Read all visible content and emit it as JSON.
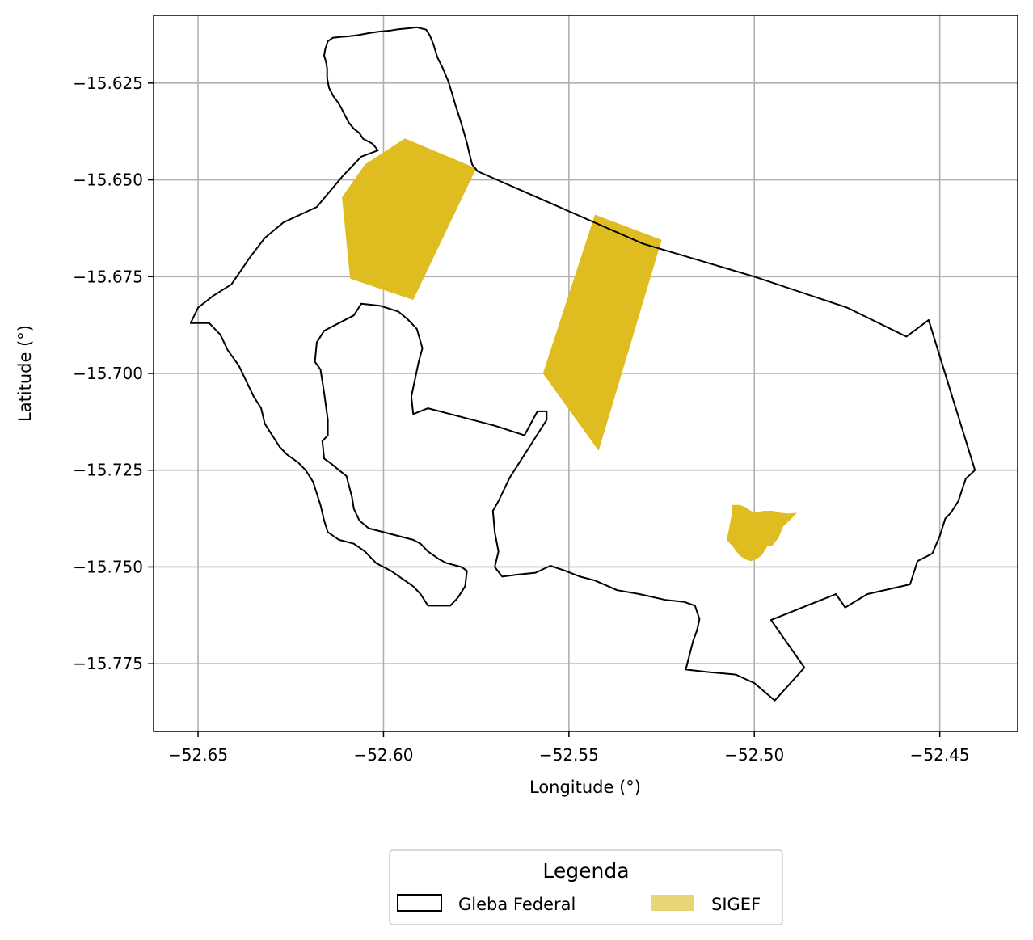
{
  "chart_data": {
    "type": "map",
    "xlabel": "Longitude (°)",
    "ylabel": "Latitude (°)",
    "xlim": [
      -52.662,
      -52.429
    ],
    "ylim": [
      -15.7925,
      -15.6075
    ],
    "xticks": [
      -52.65,
      -52.6,
      -52.55,
      -52.5,
      -52.45
    ],
    "xtick_labels": [
      "−52.65",
      "−52.60",
      "−52.55",
      "−52.50",
      "−52.45"
    ],
    "yticks": [
      -15.625,
      -15.65,
      -15.675,
      -15.7,
      -15.725,
      -15.75,
      -15.775
    ],
    "ytick_labels": [
      "−15.625",
      "−15.650",
      "−15.675",
      "−15.700",
      "−15.725",
      "−15.750",
      "−15.775"
    ],
    "grid": true,
    "legend": {
      "title": "Legenda",
      "placement": "bottom-center",
      "entries": [
        {
          "label": "Gleba Federal",
          "style": "outline",
          "color": "#000000"
        },
        {
          "label": "SIGEF",
          "style": "fill",
          "color": "#e8d577"
        }
      ]
    },
    "layers": [
      {
        "name": "Gleba Federal",
        "style": "outline",
        "stroke": "#000000",
        "coordinates": [
          [
            -52.6015,
            -15.6424
          ],
          [
            -52.6029,
            -15.6407
          ],
          [
            -52.6055,
            -15.6394
          ],
          [
            -52.6065,
            -15.6379
          ],
          [
            -52.608,
            -15.6368
          ],
          [
            -52.6093,
            -15.6353
          ],
          [
            -52.6103,
            -15.6335
          ],
          [
            -52.6112,
            -15.6318
          ],
          [
            -52.6122,
            -15.6301
          ],
          [
            -52.6135,
            -15.6284
          ],
          [
            -52.6147,
            -15.6262
          ],
          [
            -52.6152,
            -15.6237
          ],
          [
            -52.6152,
            -15.6212
          ],
          [
            -52.6155,
            -15.6195
          ],
          [
            -52.616,
            -15.6179
          ],
          [
            -52.6157,
            -15.6162
          ],
          [
            -52.615,
            -15.6142
          ],
          [
            -52.6137,
            -15.6133
          ],
          [
            -52.6117,
            -15.6131
          ],
          [
            -52.6093,
            -15.6129
          ],
          [
            -52.6068,
            -15.6126
          ],
          [
            -52.604,
            -15.6121
          ],
          [
            -52.6012,
            -15.6117
          ],
          [
            -52.598,
            -15.6114
          ],
          [
            -52.596,
            -15.6111
          ],
          [
            -52.5938,
            -15.6109
          ],
          [
            -52.591,
            -15.6106
          ],
          [
            -52.5885,
            -15.6112
          ],
          [
            -52.5875,
            -15.6127
          ],
          [
            -52.5865,
            -15.6151
          ],
          [
            -52.5855,
            -15.6183
          ],
          [
            -52.584,
            -15.6212
          ],
          [
            -52.5825,
            -15.6246
          ],
          [
            -52.5815,
            -15.6277
          ],
          [
            -52.5805,
            -15.631
          ],
          [
            -52.5795,
            -15.6339
          ],
          [
            -52.5785,
            -15.6371
          ],
          [
            -52.5775,
            -15.6405
          ],
          [
            -52.5767,
            -15.6438
          ],
          [
            -52.5761,
            -15.646
          ],
          [
            -52.5746,
            -15.6478
          ],
          [
            -52.555,
            -15.656
          ],
          [
            -52.53,
            -15.6665
          ],
          [
            -52.5,
            -15.675
          ],
          [
            -52.475,
            -15.683
          ],
          [
            -52.459,
            -15.6905
          ],
          [
            -52.453,
            -15.6862
          ],
          [
            -52.446,
            -15.708
          ],
          [
            -52.4405,
            -15.725
          ],
          [
            -52.443,
            -15.7272
          ],
          [
            -52.445,
            -15.733
          ],
          [
            -52.447,
            -15.736
          ],
          [
            -52.4485,
            -15.7375
          ],
          [
            -52.45,
            -15.742
          ],
          [
            -52.452,
            -15.7465
          ],
          [
            -52.454,
            -15.7475
          ],
          [
            -52.456,
            -15.7485
          ],
          [
            -52.458,
            -15.7545
          ],
          [
            -52.4695,
            -15.757
          ],
          [
            -52.473,
            -15.759
          ],
          [
            -52.4755,
            -15.7605
          ],
          [
            -52.478,
            -15.757
          ],
          [
            -52.4955,
            -15.7637
          ],
          [
            -52.4865,
            -15.776
          ],
          [
            -52.4945,
            -15.7845
          ],
          [
            -52.5,
            -15.78
          ],
          [
            -52.505,
            -15.7778
          ],
          [
            -52.512,
            -15.7772
          ],
          [
            -52.5185,
            -15.7765
          ],
          [
            -52.5165,
            -15.769
          ],
          [
            -52.5155,
            -15.7665
          ],
          [
            -52.5148,
            -15.7635
          ],
          [
            -52.516,
            -15.76
          ],
          [
            -52.519,
            -15.759
          ],
          [
            -52.524,
            -15.7585
          ],
          [
            -52.531,
            -15.757
          ],
          [
            -52.537,
            -15.756
          ],
          [
            -52.543,
            -15.7535
          ],
          [
            -52.547,
            -15.7525
          ],
          [
            -52.551,
            -15.751
          ],
          [
            -52.555,
            -15.7497
          ],
          [
            -52.559,
            -15.7515
          ],
          [
            -52.564,
            -15.752
          ],
          [
            -52.568,
            -15.7525
          ],
          [
            -52.57,
            -15.75
          ],
          [
            -52.569,
            -15.746
          ],
          [
            -52.57,
            -15.741
          ],
          [
            -52.5705,
            -15.7355
          ],
          [
            -52.569,
            -15.733
          ],
          [
            -52.566,
            -15.727
          ],
          [
            -52.562,
            -15.721
          ],
          [
            -52.559,
            -15.7165
          ],
          [
            -52.556,
            -15.712
          ],
          [
            -52.556,
            -15.7098
          ],
          [
            -52.5585,
            -15.7098
          ],
          [
            -52.562,
            -15.716
          ],
          [
            -52.57,
            -15.7135
          ],
          [
            -52.58,
            -15.711
          ],
          [
            -52.588,
            -15.709
          ],
          [
            -52.592,
            -15.7105
          ],
          [
            -52.5925,
            -15.706
          ],
          [
            -52.5905,
            -15.697
          ],
          [
            -52.5895,
            -15.6935
          ],
          [
            -52.591,
            -15.6885
          ],
          [
            -52.5935,
            -15.686
          ],
          [
            -52.596,
            -15.684
          ],
          [
            -52.601,
            -15.6825
          ],
          [
            -52.606,
            -15.682
          ],
          [
            -52.608,
            -15.685
          ],
          [
            -52.612,
            -15.687
          ],
          [
            -52.616,
            -15.689
          ],
          [
            -52.618,
            -15.692
          ],
          [
            -52.6185,
            -15.697
          ],
          [
            -52.617,
            -15.699
          ],
          [
            -52.616,
            -15.705
          ],
          [
            -52.615,
            -15.712
          ],
          [
            -52.615,
            -15.716
          ],
          [
            -52.6165,
            -15.7175
          ],
          [
            -52.616,
            -15.722
          ],
          [
            -52.6145,
            -15.723
          ],
          [
            -52.612,
            -15.725
          ],
          [
            -52.61,
            -15.7265
          ],
          [
            -52.6085,
            -15.732
          ],
          [
            -52.608,
            -15.735
          ],
          [
            -52.6065,
            -15.738
          ],
          [
            -52.604,
            -15.74
          ],
          [
            -52.6,
            -15.741
          ],
          [
            -52.596,
            -15.742
          ],
          [
            -52.592,
            -15.743
          ],
          [
            -52.59,
            -15.744
          ],
          [
            -52.588,
            -15.746
          ],
          [
            -52.585,
            -15.748
          ],
          [
            -52.583,
            -15.749
          ],
          [
            -52.579,
            -15.75
          ],
          [
            -52.5775,
            -15.751
          ],
          [
            -52.578,
            -15.755
          ],
          [
            -52.58,
            -15.758
          ],
          [
            -52.582,
            -15.76
          ],
          [
            -52.588,
            -15.76
          ],
          [
            -52.59,
            -15.757
          ],
          [
            -52.592,
            -15.755
          ],
          [
            -52.595,
            -15.753
          ],
          [
            -52.598,
            -15.751
          ],
          [
            -52.602,
            -15.749
          ],
          [
            -52.605,
            -15.746
          ],
          [
            -52.608,
            -15.744
          ],
          [
            -52.612,
            -15.743
          ],
          [
            -52.615,
            -15.741
          ],
          [
            -52.616,
            -15.738
          ],
          [
            -52.617,
            -15.734
          ],
          [
            -52.618,
            -15.731
          ],
          [
            -52.619,
            -15.728
          ],
          [
            -52.621,
            -15.725
          ],
          [
            -52.623,
            -15.723
          ],
          [
            -52.626,
            -15.721
          ],
          [
            -52.628,
            -15.719
          ],
          [
            -52.63,
            -15.716
          ],
          [
            -52.632,
            -15.713
          ],
          [
            -52.633,
            -15.709
          ],
          [
            -52.635,
            -15.706
          ],
          [
            -52.637,
            -15.702
          ],
          [
            -52.639,
            -15.698
          ],
          [
            -52.642,
            -15.694
          ],
          [
            -52.644,
            -15.69
          ],
          [
            -52.647,
            -15.687
          ],
          [
            -52.652,
            -15.687
          ],
          [
            -52.65,
            -15.683
          ],
          [
            -52.646,
            -15.68
          ],
          [
            -52.641,
            -15.677
          ],
          [
            -52.636,
            -15.67
          ],
          [
            -52.632,
            -15.665
          ],
          [
            -52.627,
            -15.661
          ],
          [
            -52.618,
            -15.657
          ],
          [
            -52.611,
            -15.649
          ],
          [
            -52.606,
            -15.644
          ],
          [
            -52.6015,
            -15.6424
          ]
        ]
      }
    ],
    "sigef_polygons": [
      {
        "name": "SIGEF",
        "fill": "#dfbc20",
        "coordinates": [
          [
            -52.5942,
            -15.6393
          ],
          [
            -52.605,
            -15.646
          ],
          [
            -52.6112,
            -15.6545
          ],
          [
            -52.609,
            -15.6755
          ],
          [
            -52.592,
            -15.681
          ],
          [
            -52.575,
            -15.647
          ],
          [
            -52.5942,
            -15.6393
          ]
        ]
      },
      {
        "name": "SIGEF",
        "fill": "#dfbc20",
        "coordinates": [
          [
            -52.543,
            -15.659
          ],
          [
            -52.525,
            -15.6655
          ],
          [
            -52.542,
            -15.72
          ],
          [
            -52.557,
            -15.7
          ],
          [
            -52.543,
            -15.659
          ]
        ]
      },
      {
        "name": "SIGEF",
        "fill": "#dfbc20",
        "coordinates": [
          [
            -52.506,
            -15.734
          ],
          [
            -52.504,
            -15.734
          ],
          [
            -52.5025,
            -15.7345
          ],
          [
            -52.501,
            -15.7355
          ],
          [
            -52.4995,
            -15.736
          ],
          [
            -52.4975,
            -15.7355
          ],
          [
            -52.495,
            -15.7355
          ],
          [
            -52.493,
            -15.736
          ],
          [
            -52.491,
            -15.7362
          ],
          [
            -52.4885,
            -15.736
          ],
          [
            -52.4905,
            -15.738
          ],
          [
            -52.4922,
            -15.7395
          ],
          [
            -52.4935,
            -15.7425
          ],
          [
            -52.4952,
            -15.7445
          ],
          [
            -52.4965,
            -15.7447
          ],
          [
            -52.498,
            -15.747
          ],
          [
            -52.4995,
            -15.748
          ],
          [
            -52.501,
            -15.7485
          ],
          [
            -52.5025,
            -15.748
          ],
          [
            -52.504,
            -15.747
          ],
          [
            -52.506,
            -15.7445
          ],
          [
            -52.5075,
            -15.743
          ],
          [
            -52.507,
            -15.741
          ],
          [
            -52.5065,
            -15.7385
          ],
          [
            -52.506,
            -15.736
          ],
          [
            -52.506,
            -15.734
          ]
        ]
      }
    ]
  }
}
